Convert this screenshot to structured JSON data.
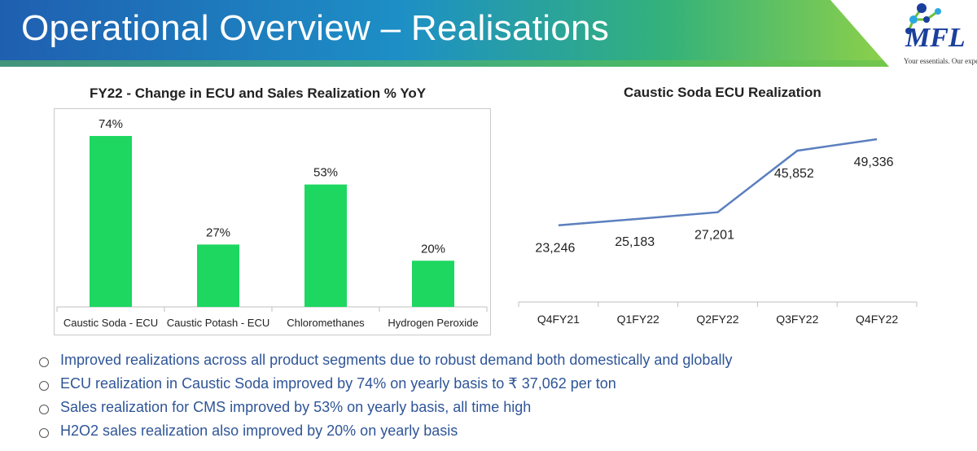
{
  "header": {
    "title": "Operational Overview – Realisations",
    "logo_text": "MFL",
    "tagline": "Your essentials. Our expertise"
  },
  "colors": {
    "bar": "#1ed760",
    "line": "#5b7fbf",
    "bullet_text": "#2f5597"
  },
  "chart_data": [
    {
      "type": "bar",
      "title": "FY22 - Change in ECU and Sales Realization % YoY",
      "categories": [
        "Caustic Soda - ECU",
        "Caustic Potash - ECU",
        "Chloromethanes",
        "Hydrogen Peroxide"
      ],
      "values": [
        74,
        27,
        53,
        20
      ],
      "labels": [
        "74%",
        "27%",
        "53%",
        "20%"
      ],
      "ylim": [
        0,
        80
      ],
      "xlabel": "",
      "ylabel": ""
    },
    {
      "type": "line",
      "title": "Caustic Soda ECU Realization",
      "categories": [
        "Q4FY21",
        "Q1FY22",
        "Q2FY22",
        "Q3FY22",
        "Q4FY22"
      ],
      "values": [
        23246,
        25183,
        27201,
        45852,
        49336
      ],
      "labels": [
        "23,246",
        "25,183",
        "27,201",
        "45,852",
        "49,336"
      ],
      "ylim": [
        0,
        55000
      ],
      "xlabel": "",
      "ylabel": ""
    }
  ],
  "bullets": [
    "Improved realizations across all product segments due to robust demand both domestically and globally",
    "ECU realization in Caustic Soda improved by 74% on yearly basis to ₹ 37,062 per ton",
    "Sales realization for CMS improved by 53% on yearly basis, all time high",
    "H2O2 sales realization also improved by 20% on yearly basis"
  ]
}
